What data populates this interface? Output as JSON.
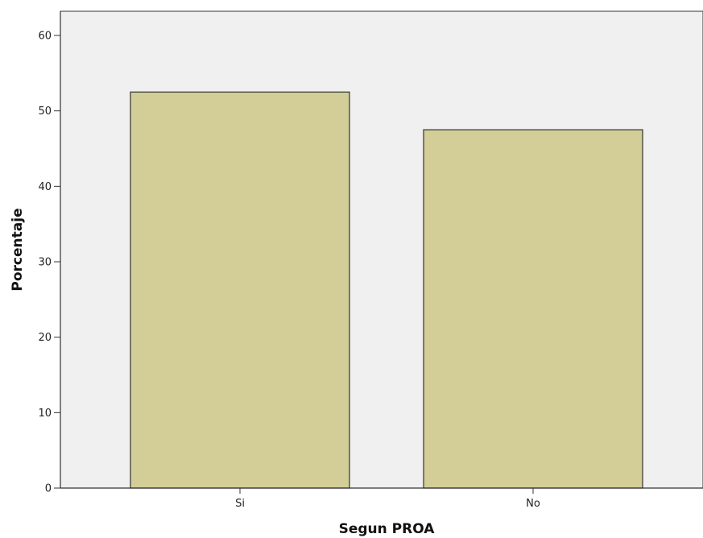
{
  "chart_data": {
    "type": "bar",
    "categories": [
      "Si",
      "No"
    ],
    "values": [
      52.5,
      47.5
    ],
    "xlabel": "Segun PROA",
    "ylabel": "Porcentaje",
    "ylim": [
      0,
      60
    ],
    "yticks": [
      0,
      10,
      20,
      30,
      40,
      50,
      60
    ],
    "grid": false,
    "colors": {
      "plot_background": "#f0f0f0",
      "bar_fill": "#d3ce97",
      "bar_stroke": "#333333",
      "axis": "#333333"
    }
  }
}
